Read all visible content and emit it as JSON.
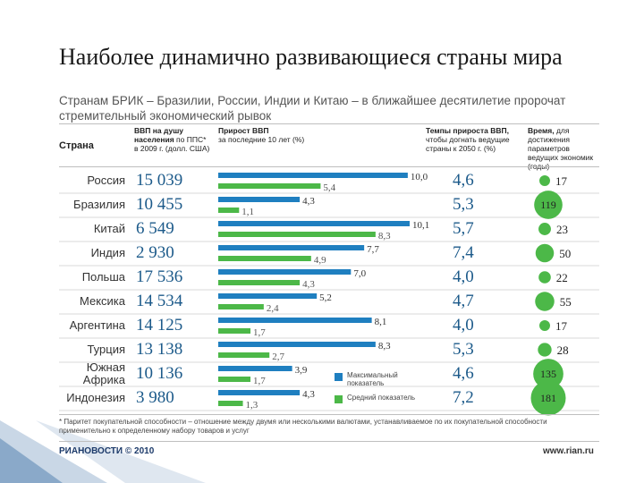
{
  "header": {
    "title": "Наиболее динамично развивающиеся страны мира",
    "subtitle": "Странам БРИК – Бразилии, России, Индии и Китаю – в ближайшее десятилетие пророчат стремительный экономический рывок"
  },
  "columns": {
    "country": "Страна",
    "gdp_bold": "ВВП на душу населения",
    "gdp_rest": "по ППС* в 2009 г. (долл. США)",
    "growth_bold": "Прирост ВВП",
    "growth_rest": "за последние 10 лет (%)",
    "rate_bold": "Темпы прироста ВВП,",
    "rate_rest": "чтобы догнать ведущие страны к 2050 г. (%)",
    "time_bold": "Время,",
    "time_rest": "для достижения параметров ведущих экономик (годы)"
  },
  "chart_data": {
    "type": "table",
    "title": "Наиболее динамично развивающиеся страны мира",
    "countries": [
      "Россия",
      "Бразилия",
      "Китай",
      "Индия",
      "Польша",
      "Мексика",
      "Аргентина",
      "Турция",
      "Южная Африка",
      "Индонезия"
    ],
    "gdp_per_capita": [
      "15 039",
      "10 455",
      "6 549",
      "2 930",
      "17 536",
      "14 534",
      "14 125",
      "13 138",
      "10 136",
      "3 980"
    ],
    "series": [
      {
        "name": "Максимальный показатель",
        "color": "#1f7fc0",
        "values": [
          10.0,
          4.3,
          10.1,
          7.7,
          7.0,
          5.2,
          8.1,
          8.3,
          3.9,
          4.3
        ],
        "labels": [
          "10,0",
          "4,3",
          "10,1",
          "7,7",
          "7,0",
          "5,2",
          "8,1",
          "8,3",
          "3,9",
          "4,3"
        ]
      },
      {
        "name": "Средний показатель",
        "color": "#4cb848",
        "values": [
          5.4,
          1.1,
          8.3,
          4.9,
          4.3,
          2.4,
          1.7,
          2.7,
          1.7,
          1.3
        ],
        "labels": [
          "5,4",
          "1,1",
          "8,3",
          "4,9",
          "4,3",
          "2,4",
          "1,7",
          "2,7",
          "1,7",
          "1,3"
        ]
      }
    ],
    "growth_needed": [
      "4,6",
      "5,3",
      "5,7",
      "7,4",
      "4,0",
      "4,7",
      "4,0",
      "5,3",
      "4,6",
      "7,2"
    ],
    "years": [
      17,
      119,
      23,
      50,
      22,
      55,
      17,
      28,
      135,
      181
    ],
    "xlim": [
      0,
      10.1
    ]
  },
  "legend": {
    "max": "Максимальный показатель",
    "avg": "Средний показатель"
  },
  "footer": {
    "note": "* Паритет покупательной способности – отношение между двумя или несколькими валютами, устанавливаемое по их покупательной способности применительно к определенному набору товаров и услуг",
    "logo": "РИАНОВОСТИ © 2010",
    "site": "www.rian.ru"
  },
  "colors": {
    "blue": "#1f7fc0",
    "green": "#4cb848",
    "deco": "#8aa9c9"
  }
}
